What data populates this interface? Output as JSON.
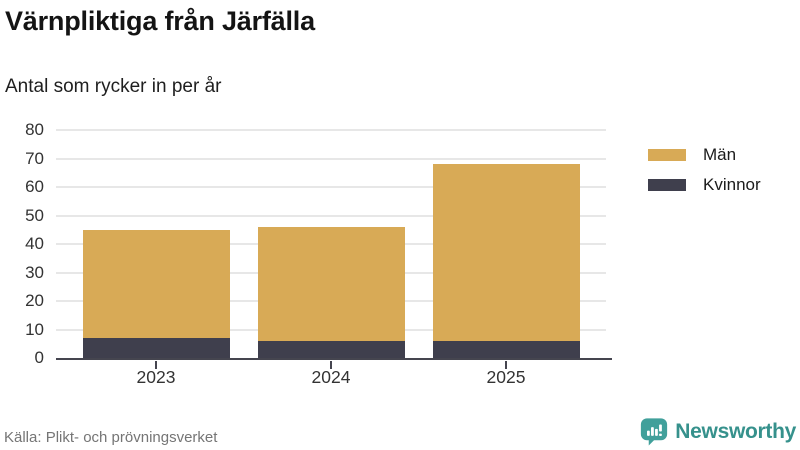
{
  "chart_data": {
    "type": "bar",
    "stacked": true,
    "title": "Värnpliktiga från Järfälla",
    "subtitle": "Antal som rycker in per år",
    "categories": [
      "2023",
      "2024",
      "2025"
    ],
    "series": [
      {
        "name": "Män",
        "color": "#d8aa56",
        "values": [
          38,
          40,
          62
        ]
      },
      {
        "name": "Kvinnor",
        "color": "#3f3f4d",
        "values": [
          7,
          6,
          6
        ]
      }
    ],
    "totals": [
      45,
      46,
      68
    ],
    "ylim": [
      0,
      80
    ],
    "yticks": [
      0,
      10,
      20,
      30,
      40,
      50,
      60,
      70,
      80
    ],
    "grid": true,
    "legend_position": "right"
  },
  "footer": {
    "source": "Källa: Plikt- och prövningsverket",
    "brand": "Newsworthy",
    "brand_color": "#36918c",
    "icon_color": "#41a09b"
  }
}
